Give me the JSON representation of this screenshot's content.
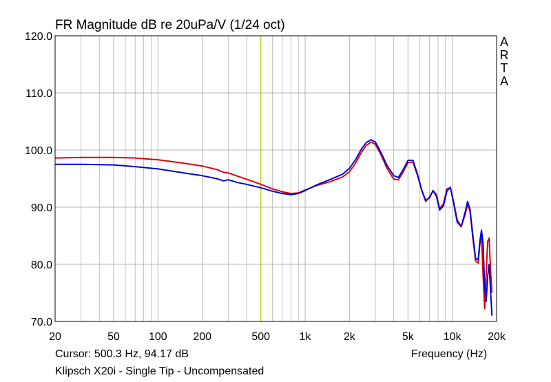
{
  "header": {
    "title": "FR Magnitude dB re 20uPa/V (1/24 oct)",
    "side_label": [
      "A",
      "R",
      "T",
      "A"
    ]
  },
  "footer": {
    "cursor_readout": "Cursor: 500.3 Hz, 94.17 dB",
    "x_axis_title": "Frequency (Hz)",
    "caption": "Klipsch X20i - Single Tip - Uncompensated"
  },
  "colors": {
    "background": "#ffffff",
    "grid": "#b4b4b4",
    "cursor_line": "#c8c800",
    "series_red": "#e00000",
    "series_blue": "#0000e0"
  },
  "chart_data": {
    "type": "line",
    "x_scale": "log",
    "xlim": [
      20,
      20000
    ],
    "ylim": [
      70,
      120
    ],
    "grid": true,
    "x_ticks": [
      20,
      50,
      100,
      200,
      500,
      1000,
      2000,
      5000,
      10000,
      20000
    ],
    "x_tick_labels": [
      "20",
      "50",
      "100",
      "200",
      "500",
      "1k",
      "2k",
      "5k",
      "10k",
      "20k"
    ],
    "y_ticks": [
      70,
      80,
      90,
      100,
      110,
      120
    ],
    "y_tick_labels": [
      "70.0",
      "80.0",
      "90.0",
      "100.0",
      "110.0",
      "120.0"
    ],
    "cursor": {
      "x": 500.3,
      "y": 94.17
    },
    "series": [
      {
        "color": "#e00000",
        "x": [
          20,
          30,
          50,
          70,
          100,
          150,
          200,
          250,
          280,
          300,
          350,
          400,
          500,
          600,
          700,
          800,
          900,
          1000,
          1200,
          1500,
          1800,
          2000,
          2200,
          2400,
          2600,
          2800,
          3000,
          3300,
          3600,
          4000,
          4300,
          4600,
          5000,
          5400,
          5800,
          6200,
          6600,
          7000,
          7400,
          7800,
          8200,
          8700,
          9200,
          9700,
          10200,
          10800,
          11500,
          12200,
          12700,
          13200,
          13800,
          14400,
          15000,
          15400,
          15800,
          16200,
          16600,
          17000,
          17400,
          17800,
          18200,
          18600
        ],
        "y": [
          98.6,
          98.7,
          98.7,
          98.6,
          98.3,
          97.7,
          97.2,
          96.6,
          96.1,
          96.0,
          95.4,
          94.9,
          94.0,
          93.2,
          92.7,
          92.4,
          92.5,
          93.0,
          93.8,
          94.5,
          95.3,
          96.2,
          97.7,
          99.5,
          100.8,
          101.4,
          101.0,
          99.0,
          96.8,
          94.9,
          94.8,
          96.0,
          97.8,
          97.9,
          95.6,
          92.9,
          91.0,
          91.8,
          92.9,
          92.2,
          89.8,
          90.6,
          93.2,
          93.4,
          91.0,
          87.8,
          86.6,
          88.6,
          90.5,
          89.3,
          84.5,
          80.6,
          80.2,
          83.5,
          85.2,
          78.0,
          72.2,
          78.5,
          84.0,
          84.6,
          79.0,
          75.0
        ]
      },
      {
        "color": "#0000e0",
        "x": [
          20,
          30,
          50,
          70,
          100,
          150,
          200,
          250,
          280,
          300,
          350,
          400,
          500,
          600,
          700,
          800,
          900,
          1000,
          1200,
          1500,
          1800,
          2000,
          2200,
          2400,
          2600,
          2800,
          3000,
          3300,
          3600,
          4000,
          4300,
          4600,
          5000,
          5400,
          5800,
          6200,
          6600,
          7000,
          7400,
          7800,
          8200,
          8700,
          9200,
          9700,
          10200,
          10800,
          11500,
          12200,
          12700,
          13200,
          13800,
          14400,
          15000,
          15400,
          15800,
          16200,
          16600,
          17000,
          17400,
          17800,
          18200,
          18600
        ],
        "y": [
          97.5,
          97.5,
          97.4,
          97.1,
          96.7,
          96.0,
          95.5,
          95.0,
          94.6,
          94.8,
          94.3,
          94.0,
          93.4,
          92.8,
          92.4,
          92.2,
          92.4,
          92.9,
          93.9,
          94.9,
          95.8,
          96.8,
          98.3,
          100.1,
          101.3,
          101.8,
          101.4,
          99.4,
          97.3,
          95.5,
          95.2,
          96.4,
          98.2,
          98.2,
          95.8,
          93.0,
          91.2,
          91.6,
          92.9,
          91.9,
          89.5,
          90.2,
          92.8,
          93.5,
          90.8,
          87.4,
          86.6,
          89.0,
          91.0,
          89.6,
          85.0,
          81.0,
          80.8,
          84.0,
          86.0,
          83.5,
          76.0,
          73.5,
          78.0,
          80.0,
          75.5,
          71.0
        ]
      }
    ]
  }
}
